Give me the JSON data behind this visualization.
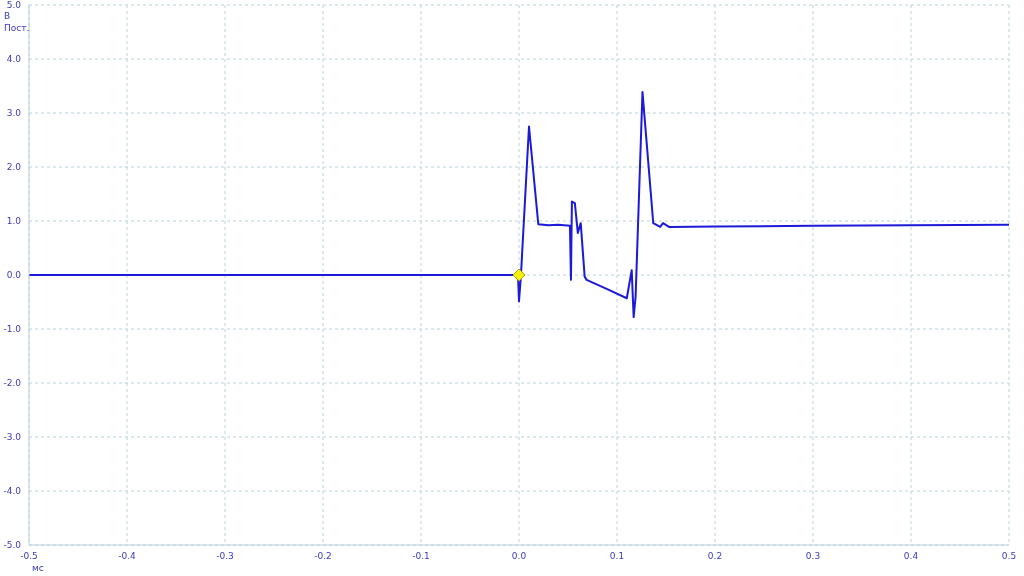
{
  "chart_data": {
    "type": "line",
    "xlabel": "мс",
    "ylabel": "В\nПост.",
    "x": [
      -0.5,
      -0.3,
      -0.1,
      -0.001,
      0.0,
      0.002,
      0.0102,
      0.0197,
      0.03,
      0.04,
      0.052,
      0.053,
      0.054,
      0.057,
      0.06,
      0.063,
      0.067,
      0.069,
      0.09,
      0.11,
      0.115,
      0.117,
      0.119,
      0.126,
      0.137,
      0.144,
      0.147,
      0.153,
      0.2,
      0.3,
      0.4,
      0.5
    ],
    "series": [
      {
        "color": "#1a1ad8",
        "values": [
          0.0,
          0.0,
          0.0,
          0.0,
          -0.49,
          0.0,
          2.75,
          0.94,
          0.92,
          0.93,
          0.91,
          -0.09,
          1.36,
          1.33,
          0.78,
          0.96,
          -0.03,
          -0.09,
          -0.26,
          -0.43,
          0.09,
          -0.78,
          -0.4,
          3.39,
          0.96,
          0.89,
          0.96,
          0.89,
          0.9,
          0.91,
          0.92,
          0.93
        ]
      }
    ],
    "xlim": [
      -0.5,
      0.5
    ],
    "xticks": [
      -0.5,
      -0.4,
      -0.3,
      -0.2,
      -0.1,
      {
        "value": 0,
        "label": "0.0"
      },
      0.1,
      0.2,
      0.3,
      0.4,
      0.5
    ],
    "ylim": [
      -5,
      5
    ],
    "yticks": [
      {
        "value": -5,
        "label": "-5.0"
      },
      {
        "value": -4,
        "label": "-4.0"
      },
      {
        "value": -3,
        "label": "-3.0"
      },
      {
        "value": -2,
        "label": "-2.0"
      },
      {
        "value": -1,
        "label": "-1.0"
      },
      {
        "value": 0,
        "label": "0.0"
      },
      {
        "value": 1,
        "label": "1.0"
      },
      {
        "value": 2,
        "label": "2.0"
      },
      {
        "value": 3,
        "label": "3.0"
      },
      {
        "value": 4,
        "label": "4.0"
      },
      {
        "value": 5,
        "label": "5.0"
      }
    ],
    "grid": true,
    "legend": false,
    "marker": "none",
    "line_style": "solid"
  }
}
